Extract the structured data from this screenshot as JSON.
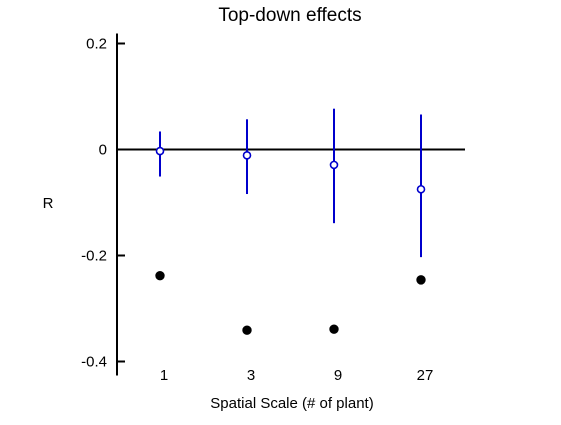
{
  "chart_data": {
    "type": "scatter",
    "title": "Top-down effects",
    "xlabel": "Spatial Scale (# of plant)",
    "ylabel": "R",
    "categories": [
      "1",
      "3",
      "9",
      "27"
    ],
    "ylim": [
      -0.4,
      0.2
    ],
    "yticks": [
      0.2,
      0,
      -0.2,
      -0.4
    ],
    "ytick_labels": [
      "0.2",
      "0",
      "-0.2",
      "-0.4"
    ],
    "zero_line": true,
    "grid": false,
    "legend": "none",
    "series": [
      {
        "style": "open-circle-with-error-bars",
        "color": "#0000cc",
        "values": [
          -0.003,
          -0.011,
          -0.029,
          -0.075
        ],
        "error_low": [
          -0.051,
          -0.084,
          -0.139,
          -0.203
        ],
        "error_high": [
          0.034,
          0.057,
          0.077,
          0.066
        ]
      },
      {
        "style": "filled-circle",
        "color": "#000000",
        "values": [
          -0.238,
          -0.341,
          -0.339,
          -0.246
        ]
      }
    ]
  }
}
